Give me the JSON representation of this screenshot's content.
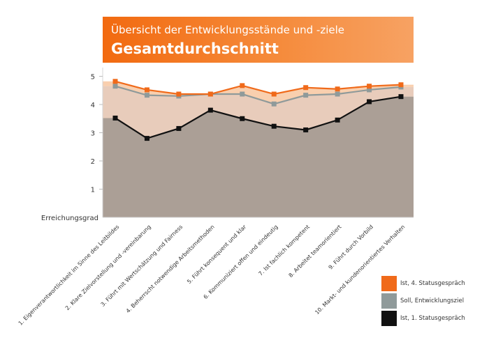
{
  "header": {
    "subtitle": "Übersicht der Entwicklungsstände und -ziele",
    "title": "Gesamtdurchschnitt"
  },
  "chart_data": {
    "type": "area",
    "title": "Gesamtdurchschnitt",
    "subtitle": "Übersicht der Entwicklungsstände und -ziele",
    "ylabel": "Erreichungsgrad",
    "xlabel": "",
    "ylim": [
      0,
      5
    ],
    "yticks": [
      1,
      2,
      3,
      4,
      5
    ],
    "grid": false,
    "legend_position": "bottom-right",
    "categories": [
      "1. Eigenverantwortlichkeit im Sinne des Leitbildes",
      "2. Klare Zielvorstellung und -vereinbarung",
      "3. Führt mit Wertschätzung und Fairness",
      "4. Beherrscht notwendige Arbeitsmethoden",
      "5. Führt konsequent und klar",
      "6. Kommuniziert offen und eindeutig",
      "7. Ist fachlich kompetent",
      "8. Arbeitet teamorientiert",
      "9. Führt durch Vorbild",
      "10. Markt- und kundenorientiertes Verhalten"
    ],
    "series": [
      {
        "name": "Ist, 4. Statusgespräch",
        "color": "#f06a1a",
        "values": [
          4.82,
          4.52,
          4.37,
          4.37,
          4.67,
          4.37,
          4.6,
          4.55,
          4.65,
          4.7
        ]
      },
      {
        "name": "Soll, Entwicklungsziel",
        "color": "#8f9a9a",
        "values": [
          4.65,
          4.33,
          4.3,
          4.37,
          4.37,
          4.02,
          4.33,
          4.37,
          4.52,
          4.62
        ]
      },
      {
        "name": "Ist, 1. Statusgespräch",
        "color": "#111111",
        "values": [
          3.52,
          2.8,
          3.15,
          3.8,
          3.5,
          3.23,
          3.1,
          3.45,
          4.1,
          4.28
        ]
      }
    ],
    "fill_colors": {
      "top_band": "#f9cfae",
      "middle_band": "#e8ccbb",
      "base_area": "#ab9f96"
    }
  }
}
